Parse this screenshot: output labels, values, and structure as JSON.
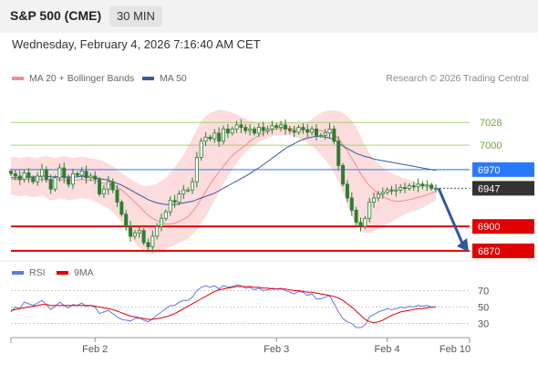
{
  "header": {
    "title": "S&P 500 (CME)",
    "timeframe": "30 MIN"
  },
  "subheader": {
    "datetime": "Wednesday, February 4, 2026 7:16:40 AM CET"
  },
  "legend": {
    "ma20_label": "MA 20 + Bollinger Bands",
    "ma50_label": "MA 50",
    "credit": "Research © 2026 Trading Central"
  },
  "rsi_legend": {
    "rsi_label": "RSI",
    "ma_label": "9MA"
  },
  "colors": {
    "ma20": "#ef8c8c",
    "band_fill": "#fbd6d6",
    "ma50": "#3a5a9c",
    "candle": "#2e7d32",
    "support": "#e00000",
    "current": "#333333",
    "blue_level": "#2979ff",
    "green_level": "#a5cf78",
    "arrow": "#2e5a9c",
    "rsi": "#5b7be0",
    "rsi_ma": "#e00000"
  },
  "chart_data": [
    {
      "type": "line",
      "title": "",
      "x_ticks": [
        "Feb 2",
        "Feb 3",
        "Feb 4",
        "Feb 10"
      ],
      "ylim": [
        6862,
        7044
      ],
      "levels": [
        {
          "value": 7028,
          "label": "7028",
          "kind": "resistance"
        },
        {
          "value": 7000,
          "label": "7000",
          "kind": "resistance"
        },
        {
          "value": 6970,
          "label": "6970",
          "kind": "pivot"
        },
        {
          "value": 6947,
          "label": "6947",
          "kind": "current"
        },
        {
          "value": 6900,
          "label": "6900",
          "kind": "support"
        },
        {
          "value": 6870,
          "label": "6870",
          "kind": "support"
        }
      ],
      "close": [
        6965,
        6962,
        6958,
        6966,
        6960,
        6955,
        6962,
        6970,
        6958,
        6946,
        6960,
        6972,
        6960,
        6952,
        6965,
        6963,
        6968,
        6960,
        6962,
        6958,
        6940,
        6946,
        6955,
        6945,
        6930,
        6915,
        6900,
        6888,
        6892,
        6895,
        6880,
        6875,
        6888,
        6900,
        6910,
        6918,
        6932,
        6930,
        6940,
        6945,
        6945,
        6955,
        6985,
        7005,
        7010,
        7008,
        7015,
        7005,
        7020,
        7015,
        7020,
        7025,
        7022,
        7018,
        7020,
        7015,
        7022,
        7018,
        7020,
        7024,
        7022,
        7025,
        7020,
        7018,
        7016,
        7022,
        7019,
        7016,
        7020,
        7012,
        7012,
        7015,
        7020,
        7005,
        6975,
        6952,
        6935,
        6920,
        6905,
        6900,
        6910,
        6930,
        6935,
        6940,
        6942,
        6945,
        6944,
        6945,
        6948,
        6947,
        6950,
        6949,
        6952,
        6950,
        6951,
        6947,
        6947
      ],
      "ma20": [
        6958,
        6958,
        6957,
        6958,
        6958,
        6957,
        6957,
        6958,
        6957,
        6956,
        6957,
        6958,
        6957,
        6956,
        6957,
        6957,
        6958,
        6957,
        6957,
        6956,
        6954,
        6953,
        6952,
        6951,
        6948,
        6945,
        6940,
        6935,
        6930,
        6925,
        6919,
        6914,
        6910,
        6907,
        6905,
        6903,
        6903,
        6904,
        6906,
        6909,
        6912,
        6918,
        6925,
        6934,
        6943,
        6952,
        6960,
        6967,
        6974,
        6981,
        6987,
        6992,
        6996,
        7000,
        7005,
        7009,
        7012,
        7015,
        7017,
        7019,
        7020,
        7021,
        7021,
        7021,
        7020,
        7020,
        7020,
        7019,
        7019,
        7018,
        7018,
        7017,
        7016,
        7013,
        7008,
        7001,
        6993,
        6984,
        6975,
        6965,
        6957,
        6950,
        6945,
        6941,
        6937,
        6934,
        6932,
        6931,
        6931,
        6932,
        6933,
        6934,
        6936,
        6937,
        6939,
        6941,
        6943
      ],
      "ma50": [
        6960,
        6960,
        6960,
        6961,
        6961,
        6961,
        6961,
        6962,
        6962,
        6961,
        6961,
        6962,
        6961,
        6961,
        6961,
        6961,
        6962,
        6961,
        6961,
        6960,
        6959,
        6958,
        6957,
        6955,
        6953,
        6951,
        6948,
        6945,
        6942,
        6939,
        6936,
        6933,
        6931,
        6929,
        6928,
        6927,
        6927,
        6927,
        6928,
        6929,
        6930,
        6931,
        6933,
        6935,
        6937,
        6939,
        6941,
        6944,
        6947,
        6950,
        6953,
        6956,
        6959,
        6962,
        6965,
        6969,
        6972,
        6976,
        6980,
        6984,
        6988,
        6992,
        6996,
        6999,
        7002,
        7005,
        7007,
        7009,
        7010,
        7011,
        7011,
        7010,
        7009,
        7007,
        7003,
        6999,
        6996,
        6993,
        6990,
        6988,
        6986,
        6985,
        6983,
        6982,
        6981,
        6980,
        6979,
        6978,
        6977,
        6976,
        6975,
        6974,
        6973,
        6972,
        6971,
        6970,
        6969
      ],
      "band_upper": [
        6985,
        6986,
        6984,
        6985,
        6986,
        6985,
        6984,
        6986,
        6987,
        6985,
        6984,
        6986,
        6987,
        6985,
        6984,
        6985,
        6986,
        6985,
        6984,
        6983,
        6982,
        6980,
        6977,
        6974,
        6970,
        6966,
        6962,
        6958,
        6955,
        6952,
        6950,
        6950,
        6951,
        6953,
        6956,
        6960,
        6966,
        6973,
        6980,
        6988,
        6998,
        7008,
        7020,
        7030,
        7036,
        7040,
        7042,
        7044,
        7043,
        7042,
        7040,
        7038,
        7035,
        7033,
        7030,
        7029,
        7028,
        7028,
        7027,
        7027,
        7027,
        7028,
        7029,
        7028,
        7028,
        7027,
        7028,
        7029,
        7032,
        7036,
        7040,
        7042,
        7043,
        7043,
        7042,
        7040,
        7036,
        7030,
        7022,
        7012,
        7000,
        6990,
        6983,
        6978,
        6973,
        6969,
        6966,
        6963,
        6961,
        6959,
        6957,
        6955,
        6954,
        6953,
        6952,
        6951,
        6950
      ],
      "band_lower": [
        6940,
        6938,
        6937,
        6938,
        6937,
        6936,
        6937,
        6938,
        6935,
        6932,
        6933,
        6935,
        6934,
        6932,
        6933,
        6934,
        6935,
        6934,
        6933,
        6931,
        6928,
        6925,
        6922,
        6918,
        6912,
        6905,
        6896,
        6888,
        6880,
        6874,
        6870,
        6866,
        6866,
        6868,
        6870,
        6872,
        6875,
        6877,
        6880,
        6882,
        6885,
        6890,
        6896,
        6904,
        6912,
        6922,
        6932,
        6942,
        6952,
        6962,
        6970,
        6978,
        6985,
        6991,
        6996,
        7000,
        7004,
        7007,
        7009,
        7011,
        7012,
        7012,
        7012,
        7012,
        7010,
        7009,
        7006,
        7003,
        6999,
        6994,
        6988,
        6982,
        6975,
        6966,
        6955,
        6942,
        6928,
        6914,
        6902,
        6895,
        6892,
        6892,
        6894,
        6897,
        6900,
        6903,
        6906,
        6909,
        6912,
        6915,
        6917,
        6919,
        6921,
        6923,
        6926,
        6929,
        6932
      ],
      "forecast": [
        6947,
        6870
      ]
    },
    {
      "type": "line",
      "title": "",
      "yticks": [
        70,
        50,
        30
      ],
      "ylim": [
        15,
        85
      ],
      "rsi": [
        44,
        50,
        48,
        56,
        54,
        52,
        55,
        58,
        53,
        47,
        51,
        56,
        52,
        49,
        53,
        52,
        55,
        51,
        52,
        50,
        42,
        44,
        46,
        42,
        38,
        35,
        34,
        33,
        36,
        37,
        34,
        32,
        36,
        40,
        44,
        48,
        52,
        52,
        56,
        58,
        58,
        62,
        70,
        74,
        76,
        74,
        76,
        72,
        76,
        74,
        75,
        77,
        76,
        73,
        74,
        71,
        73,
        70,
        71,
        73,
        72,
        73,
        70,
        68,
        66,
        69,
        68,
        64,
        66,
        60,
        60,
        62,
        64,
        54,
        44,
        36,
        32,
        30,
        25,
        25,
        28,
        38,
        41,
        44,
        46,
        48,
        47,
        48,
        50,
        49,
        51,
        50,
        52,
        51,
        52,
        50,
        50
      ],
      "rsi_ma": [
        46,
        47,
        48,
        49,
        50,
        51,
        52,
        53,
        53,
        52,
        52,
        52,
        52,
        52,
        52,
        52,
        52,
        52,
        52,
        51,
        50,
        49,
        48,
        47,
        45,
        43,
        41,
        39,
        38,
        37,
        36,
        35,
        35,
        36,
        37,
        38,
        40,
        42,
        45,
        48,
        51,
        54,
        57,
        60,
        63,
        66,
        69,
        71,
        72,
        73,
        74,
        75,
        75,
        75,
        75,
        74,
        74,
        73,
        73,
        72,
        72,
        72,
        72,
        71,
        70,
        70,
        69,
        68,
        68,
        67,
        66,
        65,
        64,
        63,
        61,
        58,
        54,
        50,
        45,
        40,
        35,
        32,
        31,
        32,
        34,
        37,
        40,
        42,
        44,
        45,
        46,
        47,
        48,
        48,
        49,
        50,
        50
      ]
    }
  ]
}
